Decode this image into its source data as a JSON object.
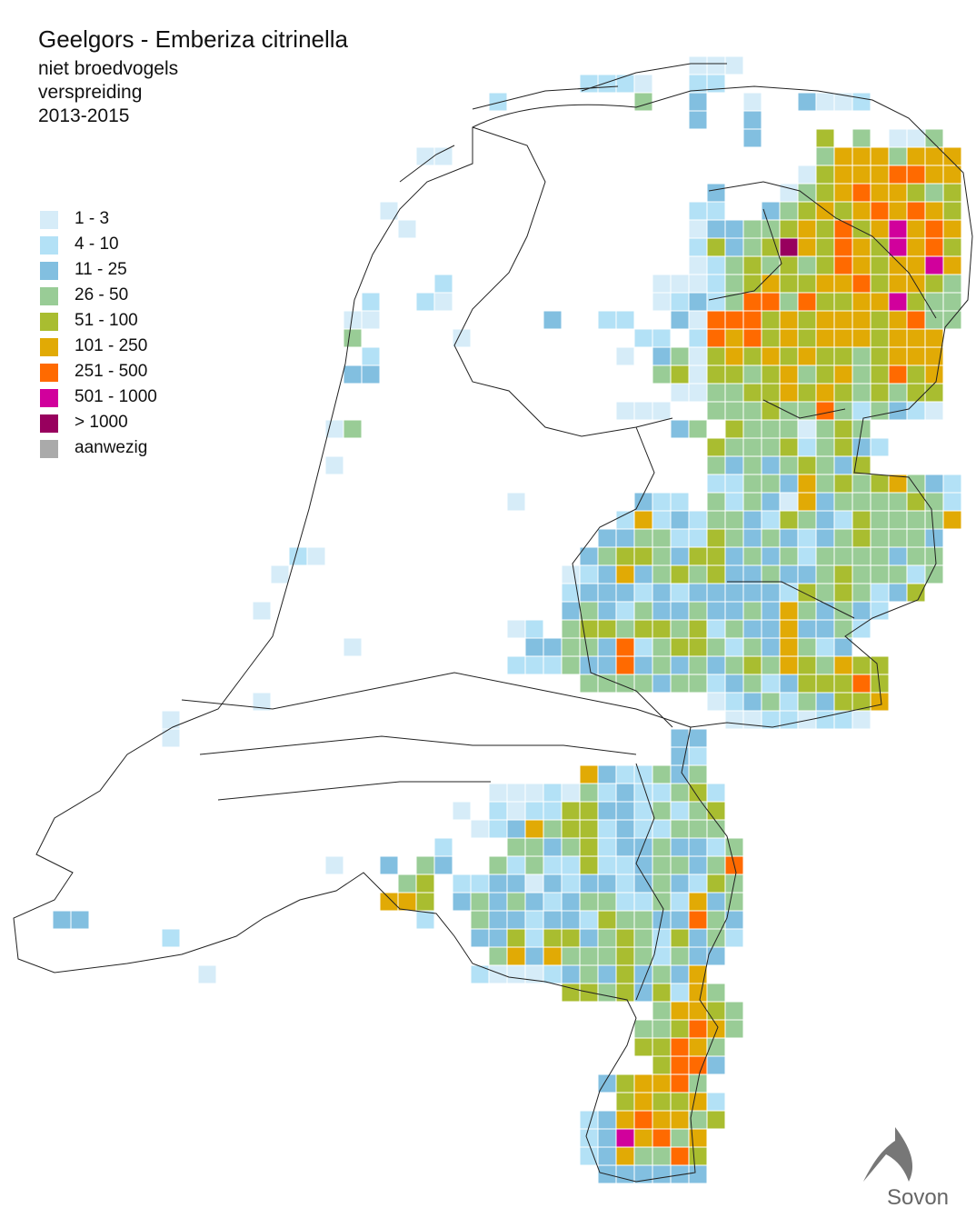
{
  "header": {
    "title": "Geelgors - Emberiza citrinella",
    "subtitle_lines": [
      "niet broedvogels",
      "verspreiding",
      "2013-2015"
    ]
  },
  "legend": {
    "items": [
      {
        "label": "1 - 3",
        "color": "#d6ecf8"
      },
      {
        "label": "4 - 10",
        "color": "#b3e1f6"
      },
      {
        "label": "11 - 25",
        "color": "#82bfe0"
      },
      {
        "label": "26 - 50",
        "color": "#99cc96"
      },
      {
        "label": "51 - 100",
        "color": "#a9bd30"
      },
      {
        "label": "101 - 250",
        "color": "#e1aa05"
      },
      {
        "label": "251 - 500",
        "color": "#ff6a00"
      },
      {
        "label": "501 - 1000",
        "color": "#d1009c"
      },
      {
        "label": "> 1000",
        "color": "#98005e"
      },
      {
        "label": "aanwezig",
        "color": "#aaaaaa"
      }
    ]
  },
  "grid": {
    "runs": [
      {
        "row": 3,
        "start": 37,
        "classes": [
          1,
          1,
          1
        ]
      },
      {
        "row": 4,
        "start": 31,
        "classes": [
          2,
          2,
          2,
          1,
          0,
          0,
          2,
          2
        ]
      },
      {
        "row": 5,
        "start": 26,
        "classes": [
          2,
          0,
          0,
          0,
          0,
          0,
          0,
          0,
          4,
          0,
          0,
          3,
          0,
          0,
          1,
          0,
          0,
          3,
          1,
          1,
          2
        ]
      },
      {
        "row": 6,
        "start": 37,
        "classes": [
          3,
          0,
          0,
          3
        ]
      },
      {
        "row": 7,
        "start": 40,
        "classes": [
          3,
          0,
          0,
          0,
          5,
          0,
          4,
          0,
          1,
          1,
          4
        ]
      },
      {
        "row": 8,
        "start": 22,
        "classes": [
          1,
          1
        ]
      },
      {
        "row": 8,
        "start": 44,
        "classes": [
          4,
          6,
          6,
          6,
          4,
          6,
          6,
          6
        ]
      },
      {
        "row": 9,
        "start": 43,
        "classes": [
          1,
          5,
          6,
          6,
          6,
          7,
          7,
          6,
          6
        ]
      },
      {
        "row": 10,
        "start": 38,
        "classes": [
          3,
          0,
          0,
          0,
          1,
          4,
          5,
          6,
          7,
          6,
          6,
          5,
          4,
          5
        ]
      },
      {
        "row": 11,
        "start": 20,
        "classes": [
          1
        ]
      },
      {
        "row": 11,
        "start": 37,
        "classes": [
          2,
          2,
          0,
          0,
          3,
          4,
          5,
          6,
          5,
          6,
          7,
          6,
          7,
          6,
          5
        ]
      },
      {
        "row": 12,
        "start": 21,
        "classes": [
          1
        ]
      },
      {
        "row": 12,
        "start": 37,
        "classes": [
          1,
          3,
          3,
          4,
          4,
          5,
          6,
          5,
          7,
          5,
          6,
          8,
          6,
          7,
          6
        ]
      },
      {
        "row": 13,
        "start": 37,
        "classes": [
          2,
          5,
          3,
          4,
          5,
          9,
          6,
          5,
          7,
          6,
          5,
          8,
          6,
          7,
          5
        ]
      },
      {
        "row": 14,
        "start": 37,
        "classes": [
          1,
          2,
          4,
          5,
          4,
          5,
          4,
          5,
          7,
          6,
          5,
          6,
          6,
          8,
          6
        ]
      },
      {
        "row": 15,
        "start": 23,
        "classes": [
          2
        ]
      },
      {
        "row": 15,
        "start": 35,
        "classes": [
          1,
          1,
          1,
          2,
          4,
          5,
          6,
          5,
          5,
          6,
          6,
          7,
          5,
          6,
          6,
          5,
          4
        ]
      },
      {
        "row": 16,
        "start": 19,
        "classes": [
          2,
          0,
          0,
          2,
          1
        ]
      },
      {
        "row": 16,
        "start": 35,
        "classes": [
          1,
          2,
          3,
          2,
          4,
          7,
          7,
          4,
          7,
          5,
          5,
          6,
          6,
          8,
          5,
          4,
          4
        ]
      },
      {
        "row": 17,
        "start": 18,
        "classes": [
          1,
          1
        ]
      },
      {
        "row": 17,
        "start": 29,
        "classes": [
          3,
          0,
          0,
          2,
          2,
          0,
          0,
          3,
          1,
          7,
          7,
          7,
          5,
          6,
          5,
          6,
          6,
          6,
          5,
          6,
          7,
          4,
          4
        ]
      },
      {
        "row": 18,
        "start": 18,
        "classes": [
          4,
          0,
          0,
          0,
          0,
          0,
          1
        ]
      },
      {
        "row": 18,
        "start": 34,
        "classes": [
          2,
          2,
          0,
          2,
          7,
          6,
          7,
          5,
          6,
          5,
          6,
          6,
          6,
          5,
          6,
          6,
          6
        ]
      },
      {
        "row": 19,
        "start": 19,
        "classes": [
          2
        ]
      },
      {
        "row": 19,
        "start": 33,
        "classes": [
          1,
          0,
          3,
          4,
          1,
          5,
          6,
          5,
          6,
          5,
          6,
          5,
          5,
          4,
          5,
          6,
          6,
          6
        ]
      },
      {
        "row": 20,
        "start": 18,
        "classes": [
          3,
          3
        ]
      },
      {
        "row": 20,
        "start": 35,
        "classes": [
          4,
          5,
          1,
          5,
          5,
          4,
          5,
          6,
          4,
          5,
          6,
          4,
          5,
          7,
          5,
          6
        ]
      },
      {
        "row": 21,
        "start": 36,
        "classes": [
          1,
          1,
          4,
          4,
          5,
          5,
          6,
          5,
          6,
          5,
          4,
          5,
          4,
          5,
          5
        ]
      },
      {
        "row": 22,
        "start": 33,
        "classes": [
          1,
          1,
          1,
          0,
          0,
          4,
          4,
          4,
          5,
          4,
          4,
          7,
          4,
          2,
          4,
          3,
          2,
          1
        ]
      },
      {
        "row": 23,
        "start": 17,
        "classes": [
          1,
          4
        ]
      },
      {
        "row": 23,
        "start": 36,
        "classes": [
          3,
          4,
          0,
          5,
          4,
          4,
          4,
          1,
          4,
          5,
          4
        ]
      },
      {
        "row": 24,
        "start": 38,
        "classes": [
          5,
          4,
          4,
          4,
          5,
          2,
          4,
          5,
          3,
          2
        ]
      },
      {
        "row": 25,
        "start": 17,
        "classes": [
          1
        ]
      },
      {
        "row": 25,
        "start": 38,
        "classes": [
          4,
          3,
          4,
          3,
          4,
          5,
          4,
          3,
          5
        ]
      },
      {
        "row": 26,
        "start": 38,
        "classes": [
          2,
          2,
          4,
          4,
          3,
          6,
          4,
          5,
          4,
          5,
          6,
          4,
          3,
          2
        ]
      },
      {
        "row": 27,
        "start": 27,
        "classes": [
          1
        ]
      },
      {
        "row": 27,
        "start": 34,
        "classes": [
          3,
          2,
          2,
          0,
          4,
          2,
          4,
          3,
          1,
          6,
          3,
          4,
          4,
          4,
          4,
          5,
          4,
          2
        ]
      },
      {
        "row": 28,
        "start": 33,
        "classes": [
          2,
          6,
          2,
          3,
          2,
          4,
          4,
          3,
          2,
          5,
          4,
          3,
          2,
          5,
          4,
          4,
          4,
          4,
          6
        ]
      },
      {
        "row": 29,
        "start": 32,
        "classes": [
          3,
          3,
          4,
          4,
          2,
          2,
          5,
          4,
          3,
          4,
          3,
          2,
          3,
          4,
          5,
          4,
          4,
          4,
          3
        ]
      },
      {
        "row": 30,
        "start": 15,
        "classes": [
          2,
          1
        ]
      },
      {
        "row": 30,
        "start": 31,
        "classes": [
          3,
          4,
          5,
          5,
          4,
          3,
          5,
          5,
          3,
          4,
          3,
          4,
          2,
          4,
          4,
          4,
          4,
          3,
          4,
          4
        ]
      },
      {
        "row": 31,
        "start": 14,
        "classes": [
          1
        ]
      },
      {
        "row": 31,
        "start": 30,
        "classes": [
          1,
          2,
          3,
          6,
          3,
          4,
          5,
          4,
          5,
          3,
          3,
          4,
          3,
          3,
          4,
          5,
          4,
          4,
          4,
          2,
          4
        ]
      },
      {
        "row": 32,
        "start": 30,
        "classes": [
          2,
          3,
          3,
          3,
          2,
          3,
          2,
          3,
          3,
          3,
          3,
          3,
          2,
          5,
          4,
          5,
          4,
          2,
          3,
          5
        ]
      },
      {
        "row": 33,
        "start": 13,
        "classes": [
          1
        ]
      },
      {
        "row": 33,
        "start": 30,
        "classes": [
          3,
          4,
          3,
          2,
          4,
          3,
          3,
          4,
          3,
          3,
          4,
          3,
          6,
          4,
          3,
          4,
          3,
          2
        ]
      },
      {
        "row": 34,
        "start": 27,
        "classes": [
          1,
          2,
          0,
          4,
          5,
          5,
          4,
          5,
          5,
          4,
          5,
          2,
          4,
          3,
          3,
          6,
          3,
          3,
          4,
          2
        ]
      },
      {
        "row": 35,
        "start": 18,
        "classes": [
          1
        ]
      },
      {
        "row": 35,
        "start": 28,
        "classes": [
          3,
          3,
          4,
          4,
          3,
          7,
          2,
          4,
          5,
          5,
          4,
          2,
          4,
          3,
          6,
          4,
          2,
          3
        ]
      },
      {
        "row": 36,
        "start": 27,
        "classes": [
          2,
          2,
          2,
          4,
          3,
          3,
          7,
          3,
          4,
          3,
          4,
          3,
          4,
          5,
          4,
          6,
          5,
          4,
          6,
          5,
          5
        ]
      },
      {
        "row": 37,
        "start": 31,
        "classes": [
          4,
          4,
          4,
          4,
          3,
          4,
          4,
          2,
          3,
          4,
          2,
          3,
          5,
          5,
          5,
          7,
          5
        ]
      },
      {
        "row": 38,
        "start": 13,
        "classes": [
          1
        ]
      },
      {
        "row": 38,
        "start": 38,
        "classes": [
          1,
          2,
          3,
          4,
          2,
          4,
          3,
          5,
          5,
          6
        ]
      },
      {
        "row": 39,
        "start": 8,
        "classes": [
          1
        ]
      },
      {
        "row": 39,
        "start": 39,
        "classes": [
          1,
          1,
          2,
          2,
          1,
          2,
          2,
          1
        ]
      },
      {
        "row": 40,
        "start": 8,
        "classes": [
          1
        ]
      },
      {
        "row": 40,
        "start": 36,
        "classes": [
          3,
          3
        ]
      },
      {
        "row": 41,
        "start": 36,
        "classes": [
          3,
          2
        ]
      },
      {
        "row": 42,
        "start": 31,
        "classes": [
          6,
          3,
          2,
          2,
          4,
          3,
          4
        ]
      },
      {
        "row": 43,
        "start": 26,
        "classes": [
          1,
          1,
          1,
          2,
          1,
          4,
          2,
          3,
          2,
          2,
          4,
          5,
          2
        ]
      },
      {
        "row": 44,
        "start": 24,
        "classes": [
          1,
          0,
          2,
          1,
          2,
          2,
          5,
          5,
          3,
          3,
          2,
          4,
          2,
          4,
          5
        ]
      },
      {
        "row": 45,
        "start": 25,
        "classes": [
          1,
          2,
          3,
          6,
          4,
          5,
          5,
          2,
          3,
          2,
          2,
          4,
          4,
          4
        ]
      },
      {
        "row": 46,
        "start": 23,
        "classes": [
          2,
          0,
          0,
          0,
          4,
          4,
          3,
          4,
          5,
          2,
          3,
          3,
          4,
          3,
          3,
          2,
          4
        ]
      },
      {
        "row": 47,
        "start": 17,
        "classes": [
          1,
          0,
          0,
          3,
          0,
          4,
          3,
          0,
          0,
          4,
          2,
          4,
          2,
          2,
          5,
          2,
          2,
          3,
          4,
          4,
          3,
          4,
          7
        ]
      },
      {
        "row": 48,
        "start": 21,
        "classes": [
          4,
          5,
          0,
          2,
          2,
          3,
          3,
          1,
          3,
          2,
          3,
          3,
          2,
          3,
          4,
          3,
          2,
          5,
          4
        ]
      },
      {
        "row": 49,
        "start": 20,
        "classes": [
          6,
          6,
          5,
          0,
          3,
          4,
          3,
          4,
          3,
          2,
          3,
          4,
          4,
          2,
          2,
          4,
          2,
          6,
          3,
          4
        ]
      },
      {
        "row": 50,
        "start": 2,
        "classes": [
          3,
          3
        ]
      },
      {
        "row": 50,
        "start": 22,
        "classes": [
          2,
          0,
          0,
          4,
          3,
          3,
          2,
          3,
          3,
          2,
          5,
          4,
          4,
          3,
          3,
          7,
          4,
          3
        ]
      },
      {
        "row": 51,
        "start": 8,
        "classes": [
          2
        ]
      },
      {
        "row": 51,
        "start": 25,
        "classes": [
          3,
          3,
          5,
          2,
          5,
          5,
          3,
          4,
          5,
          4,
          2,
          5,
          3,
          4,
          2
        ]
      },
      {
        "row": 52,
        "start": 26,
        "classes": [
          4,
          6,
          3,
          6,
          4,
          4,
          4,
          5,
          4,
          2,
          4,
          3,
          3
        ]
      },
      {
        "row": 53,
        "start": 10,
        "classes": [
          1
        ]
      },
      {
        "row": 53,
        "start": 25,
        "classes": [
          2,
          1,
          1,
          1,
          2,
          3,
          4,
          3,
          5,
          3,
          4,
          3,
          6
        ]
      },
      {
        "row": 54,
        "start": 30,
        "classes": [
          5,
          5,
          4,
          5,
          3,
          5,
          2,
          6,
          4
        ]
      },
      {
        "row": 55,
        "start": 35,
        "classes": [
          4,
          6,
          6,
          5,
          4
        ]
      },
      {
        "row": 56,
        "start": 34,
        "classes": [
          4,
          4,
          5,
          7,
          6,
          4
        ]
      },
      {
        "row": 57,
        "start": 34,
        "classes": [
          5,
          5,
          7,
          6,
          4
        ]
      },
      {
        "row": 58,
        "start": 35,
        "classes": [
          5,
          7,
          7,
          3
        ]
      },
      {
        "row": 59,
        "start": 32,
        "classes": [
          3,
          5,
          6,
          6,
          7,
          4
        ]
      },
      {
        "row": 60,
        "start": 33,
        "classes": [
          5,
          6,
          5,
          5,
          6,
          2
        ]
      },
      {
        "row": 61,
        "start": 31,
        "classes": [
          2,
          3,
          6,
          7,
          6,
          6,
          4,
          5
        ]
      },
      {
        "row": 62,
        "start": 31,
        "classes": [
          2,
          3,
          8,
          6,
          7,
          4,
          6
        ]
      },
      {
        "row": 63,
        "start": 31,
        "classes": [
          2,
          3,
          6,
          4,
          4,
          7,
          5
        ]
      },
      {
        "row": 64,
        "start": 32,
        "classes": [
          3,
          3,
          3,
          3,
          3,
          3
        ]
      }
    ]
  },
  "logo": {
    "text": "Sovon"
  }
}
